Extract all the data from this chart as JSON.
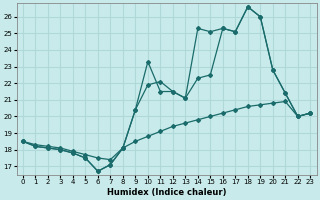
{
  "xlabel": "Humidex (Indice chaleur)",
  "bg_color": "#c8eaea",
  "grid_color": "#b0d8d8",
  "line_color": "#1a6b6b",
  "xlim": [
    -0.5,
    23.5
  ],
  "ylim": [
    16.5,
    26.8
  ],
  "xticks": [
    0,
    1,
    2,
    3,
    4,
    5,
    6,
    7,
    8,
    9,
    10,
    11,
    12,
    13,
    14,
    15,
    16,
    17,
    18,
    19,
    20,
    21,
    22,
    23
  ],
  "yticks": [
    17,
    18,
    19,
    20,
    21,
    22,
    23,
    24,
    25,
    26
  ],
  "s1": [
    18.5,
    18.2,
    18.1,
    18.0,
    17.8,
    17.5,
    16.7,
    17.1,
    18.1,
    20.4,
    21.9,
    22.1,
    21.5,
    21.1,
    22.3,
    22.5,
    25.3,
    25.1,
    26.6,
    26.0,
    22.8,
    21.4,
    20.0,
    20.2
  ],
  "s2": [
    18.5,
    18.2,
    18.1,
    18.0,
    17.8,
    17.5,
    16.7,
    17.1,
    18.1,
    20.4,
    23.3,
    21.5,
    21.5,
    21.1,
    25.3,
    25.1,
    25.3,
    25.1,
    26.6,
    26.0,
    22.8,
    21.4,
    20.0,
    20.2
  ],
  "s3": [
    18.5,
    18.3,
    18.2,
    18.1,
    17.9,
    17.7,
    17.5,
    17.4,
    18.1,
    18.5,
    18.8,
    19.1,
    19.4,
    19.6,
    19.8,
    20.0,
    20.2,
    20.4,
    20.6,
    20.7,
    20.8,
    20.9,
    20.0,
    20.2
  ]
}
